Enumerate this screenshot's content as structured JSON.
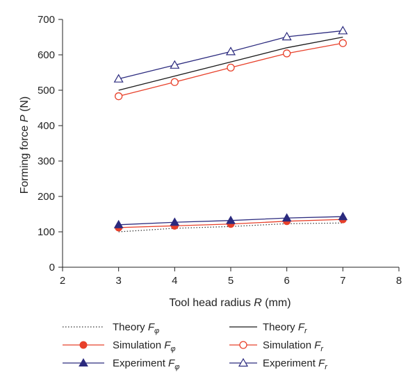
{
  "chart_data": {
    "type": "line",
    "xlabel_prefix": "Tool head radius ",
    "xlabel_var": "R",
    "xlabel_suffix": " (mm)",
    "ylabel_prefix": "Forming force ",
    "ylabel_var": "P",
    "ylabel_suffix": " (N)",
    "xlim": [
      2,
      8
    ],
    "ylim": [
      0,
      700
    ],
    "xticks": [
      2,
      3,
      4,
      5,
      6,
      7,
      8
    ],
    "yticks": [
      0,
      100,
      200,
      300,
      400,
      500,
      600,
      700
    ],
    "grid": false,
    "legend_position": "bottom",
    "x": [
      3,
      4,
      5,
      6,
      7
    ],
    "series": [
      {
        "name": "Theory",
        "sub": "φ",
        "values": [
          100,
          110,
          115,
          123,
          125
        ],
        "color": "#333333",
        "line": "dotted",
        "marker": "none"
      },
      {
        "name": "Theory",
        "sub": "r",
        "values": [
          500,
          540,
          580,
          620,
          650
        ],
        "color": "#1a1a1a",
        "line": "solid",
        "marker": "none"
      },
      {
        "name": "Simulation",
        "sub": "φ",
        "values": [
          112,
          117,
          122,
          130,
          135
        ],
        "color": "#e8402a",
        "line": "solid",
        "marker": "filled-circle"
      },
      {
        "name": "Simulation",
        "sub": "r",
        "values": [
          483,
          523,
          564,
          604,
          633
        ],
        "color": "#e8402a",
        "line": "solid",
        "marker": "open-circle"
      },
      {
        "name": "Experiment",
        "sub": "φ",
        "values": [
          120,
          127,
          132,
          139,
          143
        ],
        "color": "#2b2a7e",
        "line": "solid",
        "marker": "filled-triangle"
      },
      {
        "name": "Experiment",
        "sub": "r",
        "values": [
          532,
          571,
          609,
          651,
          668
        ],
        "color": "#2b2a7e",
        "line": "solid",
        "marker": "open-triangle"
      }
    ]
  }
}
